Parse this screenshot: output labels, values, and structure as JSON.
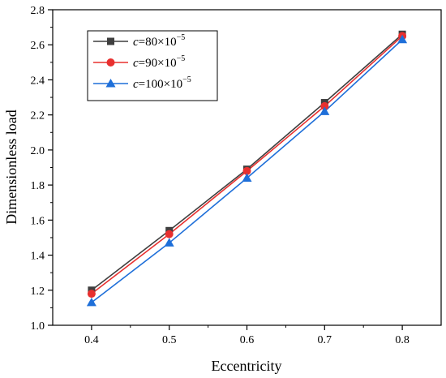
{
  "chart_data": {
    "type": "line",
    "xlabel": "Eccentricity",
    "ylabel": "Dimensionless load",
    "x": [
      0.4,
      0.5,
      0.6,
      0.7,
      0.8
    ],
    "xticks": [
      "0.4",
      "0.5",
      "0.6",
      "0.7",
      "0.8"
    ],
    "xlim": [
      0.35,
      0.85
    ],
    "yticks": [
      "1.0",
      "1.2",
      "1.4",
      "1.6",
      "1.8",
      "2.0",
      "2.2",
      "2.4",
      "2.6",
      "2.8"
    ],
    "ylim": [
      1.0,
      2.8
    ],
    "grid": false,
    "legend_position": "top-left",
    "series": [
      {
        "name": "c=80×10−5",
        "name_var": "c",
        "name_value": "=80×10",
        "name_exp": "−5",
        "color": "#3f3f3f",
        "marker": "square",
        "values": [
          1.2,
          1.54,
          1.89,
          2.27,
          2.66
        ]
      },
      {
        "name": "c=90×10−5",
        "name_var": "c",
        "name_value": "=90×10",
        "name_exp": "−5",
        "color": "#e8302f",
        "marker": "circle",
        "values": [
          1.18,
          1.52,
          1.88,
          2.25,
          2.65
        ]
      },
      {
        "name": "c=100×10−5",
        "name_var": "c",
        "name_value": "=100×10",
        "name_exp": "−5",
        "color": "#1e6fd9",
        "marker": "triangle",
        "values": [
          1.13,
          1.47,
          1.84,
          2.22,
          2.63
        ]
      }
    ]
  }
}
